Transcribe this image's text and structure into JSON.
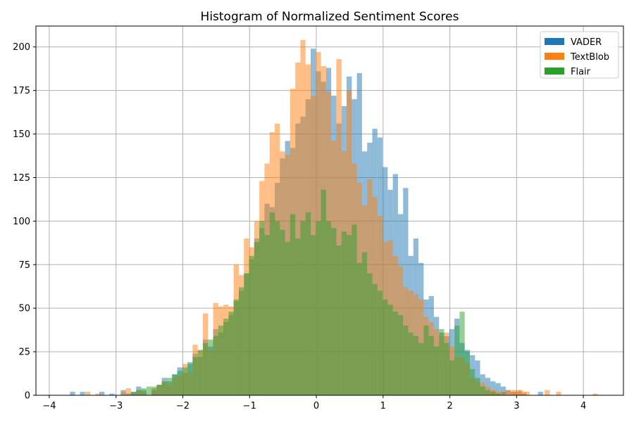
{
  "chart_data": {
    "type": "histogram",
    "title": "Histogram of Normalized Sentiment Scores",
    "xlabel": "",
    "ylabel": "",
    "xlim": [
      -4.2,
      4.6
    ],
    "ylim": [
      0,
      212
    ],
    "xticks": [
      -4,
      -3,
      -2,
      -1,
      0,
      1,
      2,
      3,
      4
    ],
    "xtick_labels": [
      "−4",
      "−3",
      "−2",
      "−1",
      "0",
      "1",
      "2",
      "3",
      "4"
    ],
    "yticks": [
      0,
      25,
      50,
      75,
      100,
      125,
      150,
      175,
      200
    ],
    "ytick_labels": [
      "0",
      "25",
      "50",
      "75",
      "100",
      "125",
      "150",
      "175",
      "200"
    ],
    "grid": true,
    "legend_position": "top-right",
    "bin_width": 0.0769,
    "bin_start": -2.93,
    "series": [
      {
        "name": "VADER",
        "color": "#1f77b4",
        "opacity": 0.5,
        "values": [
          3,
          1,
          2,
          5,
          3,
          0,
          3,
          6,
          10,
          8,
          12,
          16,
          13,
          19,
          24,
          22,
          32,
          28,
          38,
          36,
          42,
          46,
          54,
          60,
          70,
          78,
          90,
          96,
          110,
          108,
          122,
          136,
          146,
          142,
          156,
          160,
          170,
          199,
          186,
          180,
          188,
          172,
          156,
          166,
          183,
          170,
          185,
          140,
          145,
          153,
          148,
          131,
          118,
          127,
          104,
          119,
          80,
          90,
          76,
          55,
          57,
          45,
          36,
          34,
          38,
          44,
          30,
          26,
          23,
          20,
          12,
          10,
          8,
          7,
          5,
          3,
          2,
          2,
          1
        ],
        "extra_left": [
          {
            "x": -3.69,
            "value": 2
          },
          {
            "x": -3.54,
            "value": 2
          },
          {
            "x": -3.25,
            "value": 2
          },
          {
            "x": -3.1,
            "value": 1
          }
        ],
        "extra_right": [
          {
            "x": 2.77,
            "value": 2
          },
          {
            "x": 3.32,
            "value": 2
          }
        ]
      },
      {
        "name": "TextBlob",
        "color": "#ff7f0e",
        "opacity": 0.5,
        "values": [
          2,
          4,
          1,
          3,
          2,
          0,
          4,
          6,
          8,
          6,
          10,
          11,
          18,
          13,
          29,
          26,
          47,
          26,
          53,
          51,
          52,
          51,
          75,
          69,
          90,
          85,
          100,
          123,
          133,
          151,
          156,
          140,
          138,
          176,
          191,
          204,
          190,
          172,
          197,
          189,
          174,
          146,
          193,
          140,
          175,
          133,
          122,
          109,
          124,
          114,
          103,
          88,
          89,
          80,
          74,
          62,
          60,
          58,
          55,
          45,
          42,
          38,
          34,
          36,
          28,
          22,
          22,
          18,
          10,
          8,
          7,
          5,
          3,
          2,
          2,
          3,
          2,
          3,
          2
        ],
        "extra_left": [
          {
            "x": -3.46,
            "value": 2
          },
          {
            "x": -3.31,
            "value": 1
          }
        ],
        "extra_right": [
          {
            "x": 2.62,
            "value": 3
          },
          {
            "x": 2.92,
            "value": 3
          },
          {
            "x": 3.02,
            "value": 3
          },
          {
            "x": 3.12,
            "value": 2
          },
          {
            "x": 3.42,
            "value": 3
          },
          {
            "x": 3.59,
            "value": 2
          },
          {
            "x": 4.14,
            "value": 1
          }
        ]
      },
      {
        "name": "Flair",
        "color": "#2ca02c",
        "opacity": 0.5,
        "values": [
          0,
          0,
          2,
          3,
          4,
          5,
          5,
          6,
          8,
          10,
          12,
          14,
          16,
          18,
          22,
          26,
          30,
          32,
          34,
          40,
          44,
          48,
          55,
          62,
          70,
          80,
          88,
          100,
          92,
          105,
          100,
          95,
          88,
          104,
          90,
          100,
          105,
          92,
          100,
          118,
          100,
          96,
          86,
          94,
          92,
          98,
          76,
          82,
          70,
          64,
          60,
          55,
          52,
          48,
          46,
          40,
          36,
          34,
          30,
          40,
          34,
          28,
          38,
          30,
          20,
          40,
          48,
          25,
          15,
          10,
          5,
          3,
          2,
          1
        ],
        "extra_left": [],
        "extra_right": []
      }
    ]
  }
}
